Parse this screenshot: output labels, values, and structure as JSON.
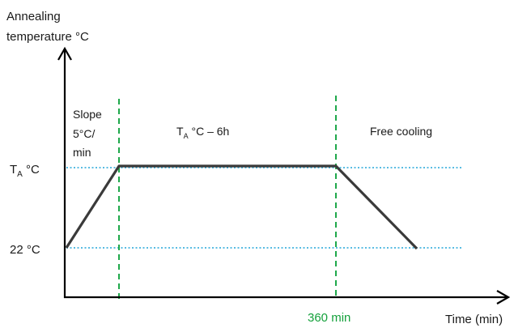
{
  "axes": {
    "y_label_line1": "Annealing",
    "y_label_line2": "temperature °C",
    "x_label": "Time (min)"
  },
  "levels": {
    "ta_main": "T",
    "ta_sub": "A",
    "ta_unit": " °C",
    "low": "22 °C"
  },
  "annotations": {
    "slope_line1": "Slope",
    "slope_line2": "5°C/",
    "slope_line3": "min",
    "hold_main": "T",
    "hold_sub": "A",
    "hold_rest": " °C – 6h",
    "cooling": "Free cooling",
    "time_marker": "360 min"
  },
  "colors": {
    "axis": "#000000",
    "profile": "#3a3a3a",
    "reference_dotted": "#22a6d9",
    "phase_dashed": "#1ea84a",
    "time_marker_text": "#15a13c"
  }
}
